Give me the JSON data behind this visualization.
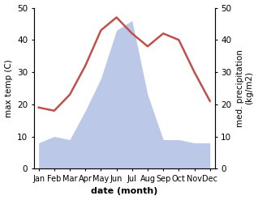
{
  "months": [
    "Jan",
    "Feb",
    "Mar",
    "Apr",
    "May",
    "Jun",
    "Jul",
    "Aug",
    "Sep",
    "Oct",
    "Nov",
    "Dec"
  ],
  "temperature": [
    19,
    18,
    23,
    32,
    43,
    47,
    42,
    38,
    42,
    40,
    30,
    21
  ],
  "precipitation": [
    8,
    10,
    9,
    18,
    28,
    43,
    46,
    23,
    9,
    9,
    8,
    8
  ],
  "temp_color": "#c0504d",
  "precip_fill_color": "#bcc8e8",
  "ylabel_left": "max temp (C)",
  "ylabel_right": "med. precipitation\n(kg/m2)",
  "xlabel": "date (month)",
  "ylim": [
    0,
    50
  ],
  "yticks": [
    0,
    10,
    20,
    30,
    40,
    50
  ],
  "right_yticks": [
    0,
    10,
    20,
    30,
    40,
    50
  ]
}
